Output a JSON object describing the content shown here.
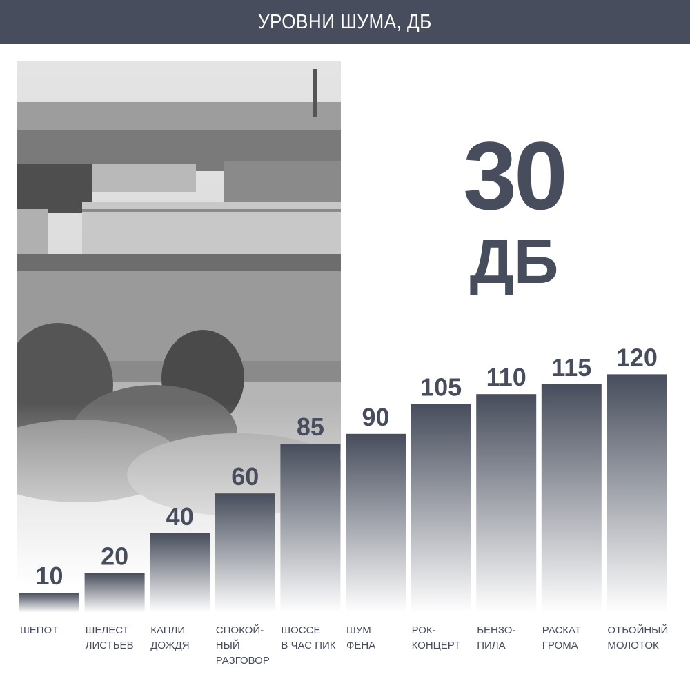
{
  "header": {
    "title": "УРОВНИ ШУМА, ДБ"
  },
  "highlight": {
    "value": "30",
    "unit": "ДБ"
  },
  "colors": {
    "primary": "#474d5c",
    "background": "#ffffff"
  },
  "chart_data": {
    "type": "bar",
    "title": "УРОВНИ ШУМА, ДБ",
    "categories": [
      [
        "ШЕПОТ"
      ],
      [
        "ШЕЛЕСТ",
        "ЛИСТЬЕВ"
      ],
      [
        "КАПЛИ",
        "ДОЖДЯ"
      ],
      [
        "СПОКОЙ-",
        "НЫЙ",
        "РАЗГОВОР"
      ],
      [
        "ШОССЕ",
        "В ЧАС ПИК"
      ],
      [
        "ШУМ",
        "ФЕНА"
      ],
      [
        "РОК-",
        "КОНЦЕРТ"
      ],
      [
        "БЕНЗО-",
        "ПИЛА"
      ],
      [
        "РАСКАТ",
        "ГРОМА"
      ],
      [
        "ОТБОЙНЫЙ",
        "МОЛОТОК"
      ]
    ],
    "values": [
      10,
      20,
      40,
      60,
      85,
      90,
      105,
      110,
      115,
      120
    ],
    "data_labels": [
      "10",
      "20",
      "40",
      "60",
      "85",
      "90",
      "105",
      "110",
      "115",
      "120"
    ],
    "unit": "ДБ",
    "ylim": [
      0,
      120
    ],
    "grid": false,
    "legend": "none",
    "bar_style": "vertical gradient from primary color to white"
  }
}
